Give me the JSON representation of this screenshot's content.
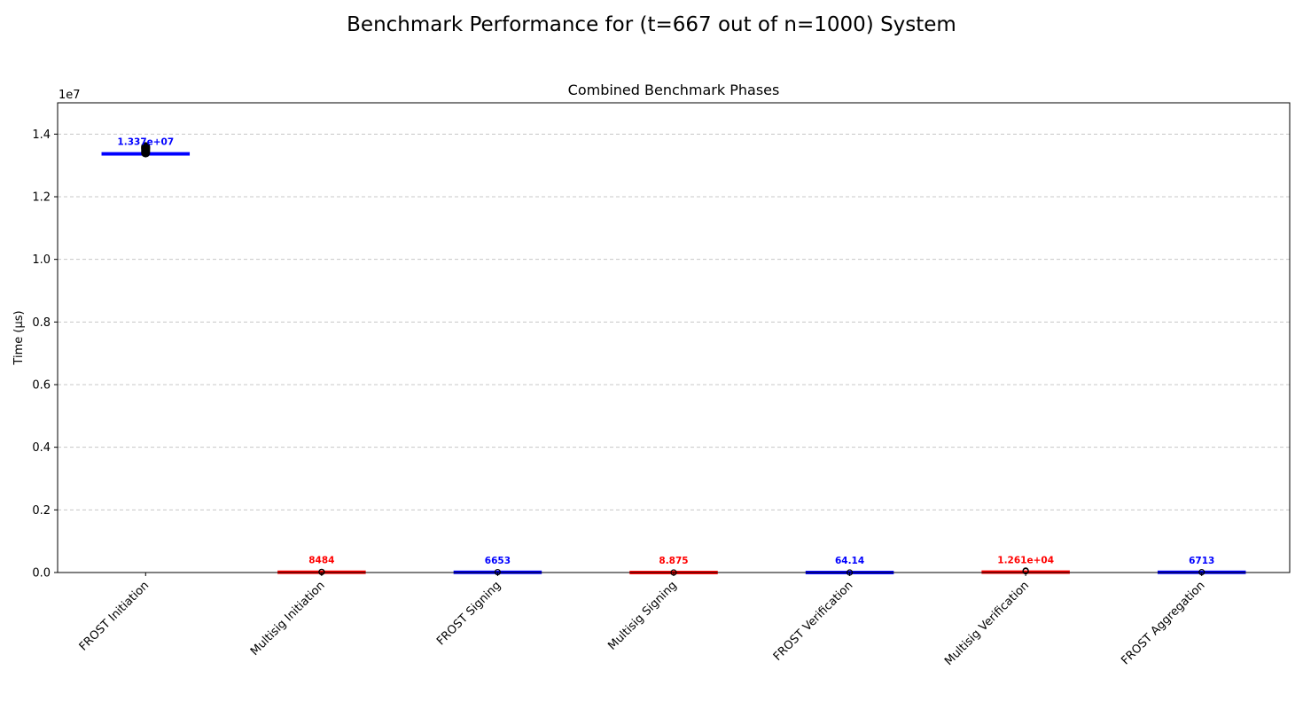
{
  "chart_data": {
    "type": "box",
    "title": "Benchmark Performance for (t=667 out of n=1000) System",
    "subtitle": "Combined Benchmark Phases",
    "ylabel": "Time (µs)",
    "xlabel": "",
    "y_offset_label": "1e7",
    "y_scale": 10000000,
    "ylim": [
      0,
      15000000
    ],
    "yticks": [
      0,
      2000000,
      4000000,
      6000000,
      8000000,
      10000000,
      12000000,
      14000000
    ],
    "ytick_labels": [
      "0.0",
      "0.2",
      "0.4",
      "0.6",
      "0.8",
      "1.0",
      "1.2",
      "1.4"
    ],
    "grid": "y-dashed",
    "categories": [
      "FROST Initiation",
      "Multisig Initiation",
      "FROST Signing",
      "Multisig Signing",
      "FROST Verification",
      "Multisig Verification",
      "FROST Aggregation"
    ],
    "medians": [
      13370000,
      8484,
      6653,
      8.875,
      64.14,
      12610,
      6713
    ],
    "median_labels": [
      "1.337e+07",
      "8484",
      "6653",
      "8.875",
      "64.14",
      "1.261e+04",
      "6713"
    ],
    "outliers": [
      [
        13400000,
        13460000,
        13520000,
        13560000,
        13600000
      ],
      [
        15000,
        20000
      ],
      [
        12000
      ],
      [
        30
      ],
      [
        200
      ],
      [
        40000,
        60000
      ],
      [
        11000
      ]
    ],
    "colors": [
      "#0000ff",
      "#ff0000",
      "#0000ff",
      "#ff0000",
      "#0000ff",
      "#ff0000",
      "#0000ff"
    ]
  }
}
